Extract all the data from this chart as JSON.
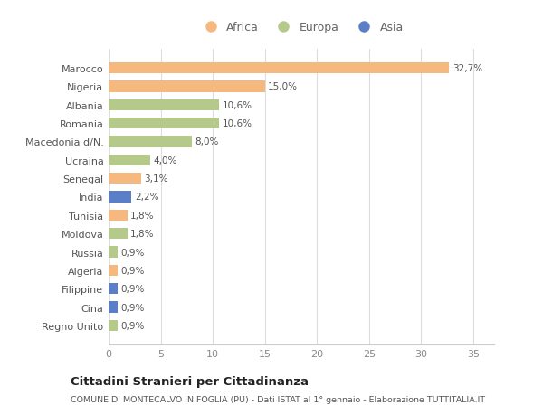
{
  "countries": [
    "Marocco",
    "Nigeria",
    "Albania",
    "Romania",
    "Macedonia d/N.",
    "Ucraina",
    "Senegal",
    "India",
    "Tunisia",
    "Moldova",
    "Russia",
    "Algeria",
    "Filippine",
    "Cina",
    "Regno Unito"
  ],
  "values": [
    32.7,
    15.0,
    10.6,
    10.6,
    8.0,
    4.0,
    3.1,
    2.2,
    1.8,
    1.8,
    0.9,
    0.9,
    0.9,
    0.9,
    0.9
  ],
  "labels": [
    "32,7%",
    "15,0%",
    "10,6%",
    "10,6%",
    "8,0%",
    "4,0%",
    "3,1%",
    "2,2%",
    "1,8%",
    "1,8%",
    "0,9%",
    "0,9%",
    "0,9%",
    "0,9%",
    "0,9%"
  ],
  "continents": [
    "Africa",
    "Africa",
    "Europa",
    "Europa",
    "Europa",
    "Europa",
    "Africa",
    "Asia",
    "Africa",
    "Europa",
    "Europa",
    "Africa",
    "Asia",
    "Asia",
    "Europa"
  ],
  "continent_colors": {
    "Africa": "#F5B97F",
    "Europa": "#B5C98A",
    "Asia": "#5B7EC9"
  },
  "background_color": "#FFFFFF",
  "plot_bg_color": "#FFFFFF",
  "grid_color": "#E0E0E0",
  "title": "Cittadini Stranieri per Cittadinanza",
  "subtitle": "COMUNE DI MONTECALVO IN FOGLIA (PU) - Dati ISTAT al 1° gennaio - Elaborazione TUTTITALIA.IT",
  "xlim": [
    0,
    37
  ],
  "xticks": [
    0,
    5,
    10,
    15,
    20,
    25,
    30,
    35
  ]
}
